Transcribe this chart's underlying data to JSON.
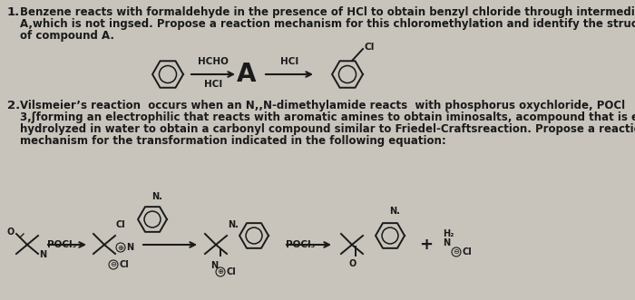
{
  "background_color": "#c8c4bc",
  "text_color": "#1a1a1a",
  "figsize": [
    7.0,
    3.31
  ],
  "dpi": 100,
  "q1_num": "1.",
  "q1_line1": "Benzene reacts with formaldehyde in the presence of HCl to obtain benzyl chloride through intermediary",
  "q1_line2": "A,which is not ingsed. Propose a reaction mechanism for this chloromethylation and identify the structure",
  "q1_line3": "of compound A.",
  "q2_num": "2.",
  "q2_line1": "Vilsmeier’s reaction  occurs when an N,,N-dimethylamide reacts  with phosphorus oxychloride, POCl",
  "q2_line2": "3,ʃforming an electrophilic that reacts with aromatic amines to obtain iminosalts, acompound that is easily",
  "q2_line3": "hydrolyzed in water to obtain a carbonyl compound similar to Friedel-Craftsreaction. Propose a reaction",
  "q2_line4": "mechanism for the transformation indicated in the following equation:",
  "fs_text": 8.5,
  "fs_bold": 9.5,
  "lw_struct": 1.4
}
